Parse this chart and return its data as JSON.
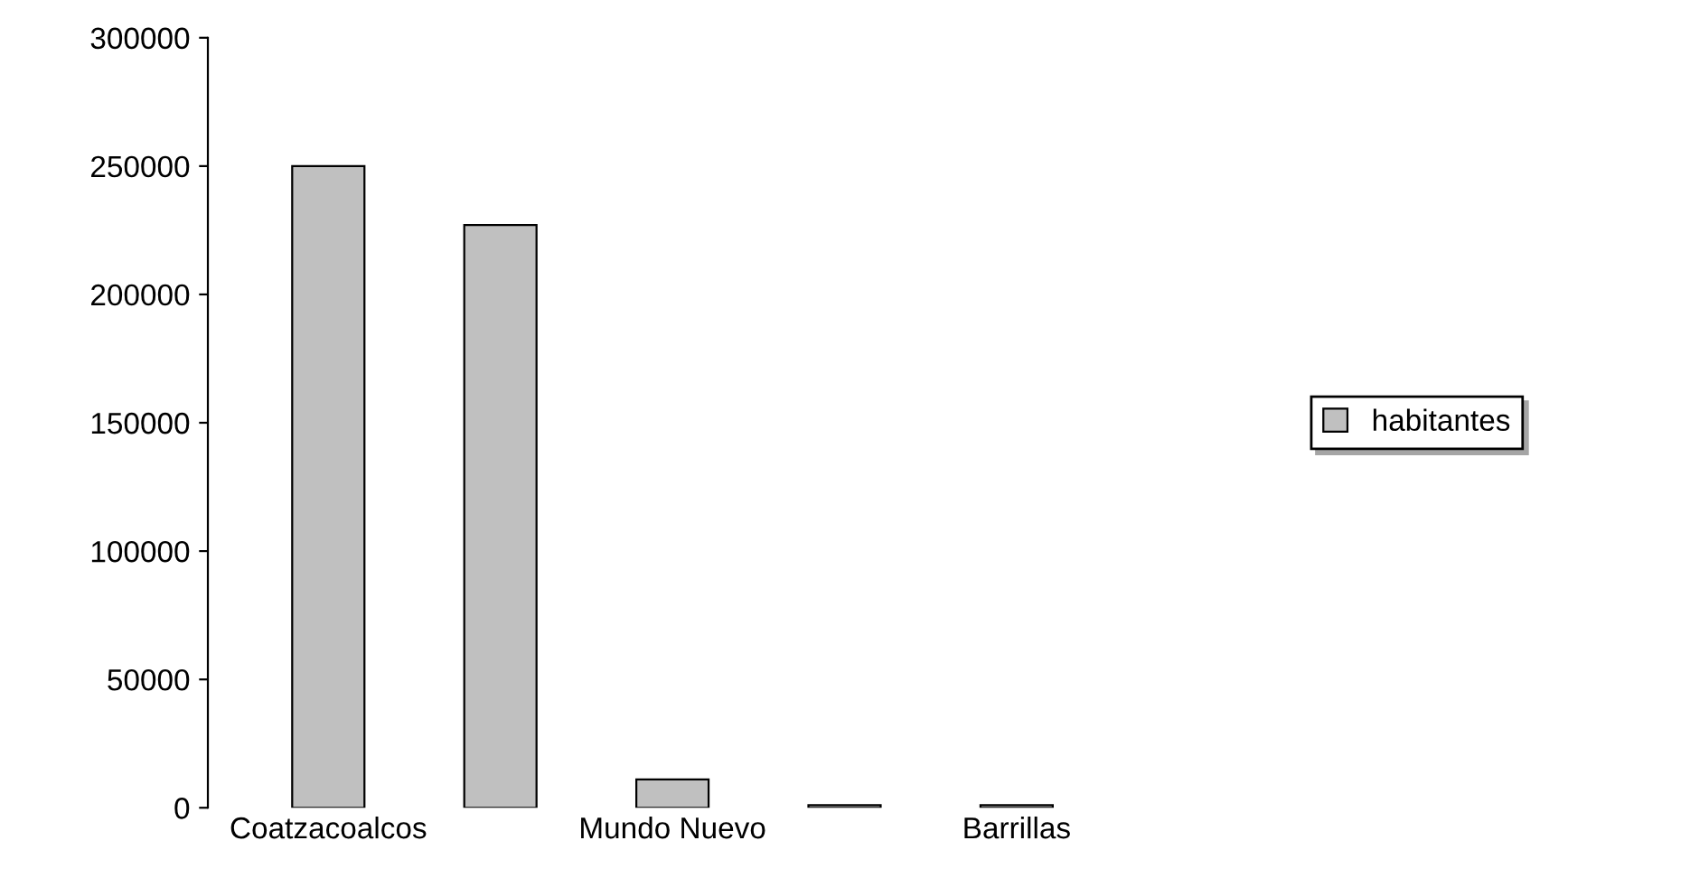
{
  "chart_data": {
    "type": "bar",
    "categories": [
      "Coatzacoalcos",
      null,
      "Mundo Nuevo",
      null,
      "Barrillas"
    ],
    "series": [
      {
        "name": "habitantes",
        "color": "#c0c0c0",
        "values": [
          250000,
          227000,
          11000,
          1000,
          1000
        ]
      }
    ],
    "ylim": [
      0,
      300000
    ],
    "yticks": [
      0,
      50000,
      100000,
      150000,
      200000,
      250000,
      300000
    ],
    "grid": false,
    "legend": "right"
  }
}
